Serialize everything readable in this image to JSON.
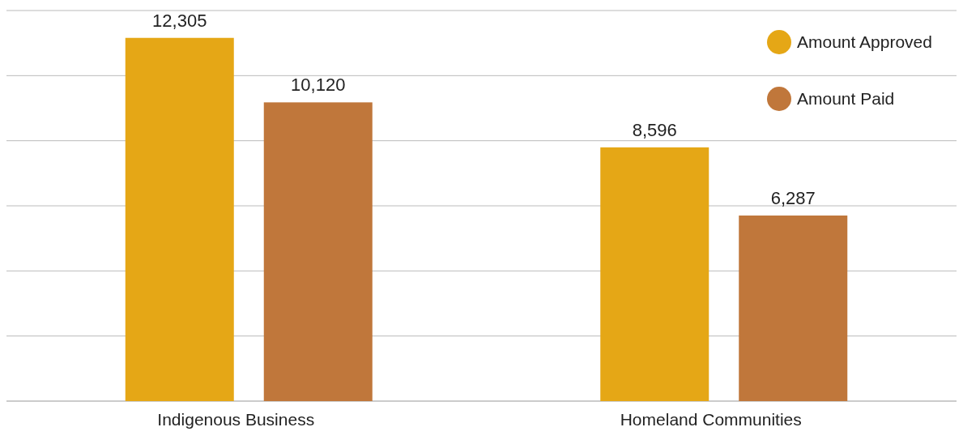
{
  "chart_data": {
    "type": "bar",
    "categories": [
      "Indigenous Business",
      "Homeland Communities"
    ],
    "series": [
      {
        "name": "Amount Approved",
        "color": "#e5a716",
        "values": [
          12305,
          8596
        ],
        "value_labels": [
          "12,305",
          "8,596"
        ]
      },
      {
        "name": "Amount Paid",
        "color": "#c0773b",
        "values": [
          10120,
          6287
        ],
        "value_labels": [
          "10,120",
          "6,287"
        ]
      }
    ],
    "tick_labels": "x",
    "grid": "y",
    "legend": "top right"
  }
}
